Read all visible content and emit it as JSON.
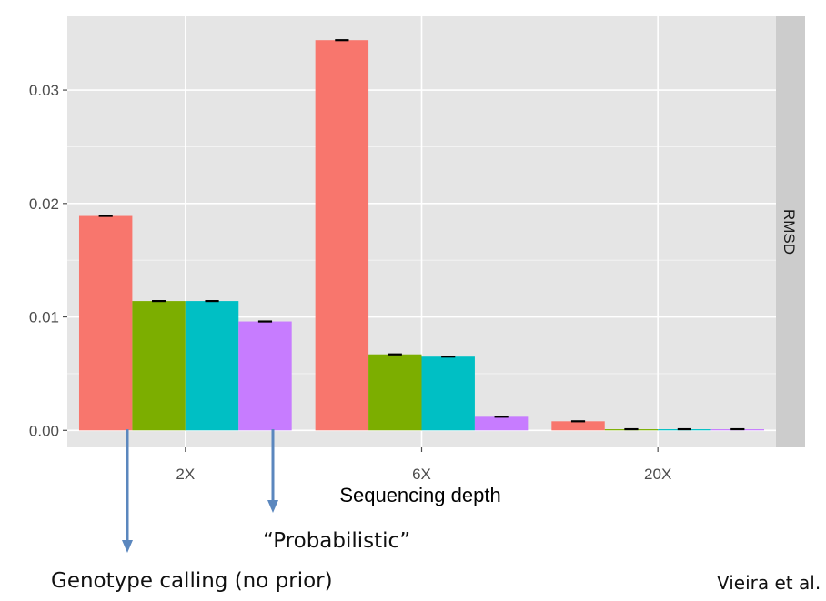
{
  "chart_data": {
    "type": "bar",
    "categories": [
      "2X",
      "6X",
      "20X"
    ],
    "series": [
      {
        "color": "#F8766D",
        "values": [
          0.0189,
          0.0344,
          0.0008
        ]
      },
      {
        "color": "#7CAE00",
        "values": [
          0.0114,
          0.0067,
          0.0001
        ]
      },
      {
        "color": "#00BFC4",
        "values": [
          0.0114,
          0.0065,
          0.0001
        ]
      },
      {
        "color": "#C77CFF",
        "values": [
          0.0096,
          0.0012,
          0.0001
        ]
      }
    ],
    "yticks": [
      "0.00",
      "0.01",
      "0.02",
      "0.03"
    ],
    "ytick_values": [
      0,
      0.01,
      0.02,
      0.03
    ],
    "ylim": [
      -0.0015,
      0.0365
    ],
    "xlabel": "Sequencing depth",
    "strip_label": "RMSD",
    "error_bars": true,
    "grid": true
  },
  "annotations": {
    "probabilistic": "“Probabilistic”",
    "genotype_calling": "Genotype calling (no prior)",
    "credit": "Vieira et al."
  },
  "colors": {
    "panel_bg": "#E5E5E5",
    "strip_bg": "#CCCCCC",
    "gridline": "#FFFFFF",
    "arrow": "#5B87BE"
  }
}
